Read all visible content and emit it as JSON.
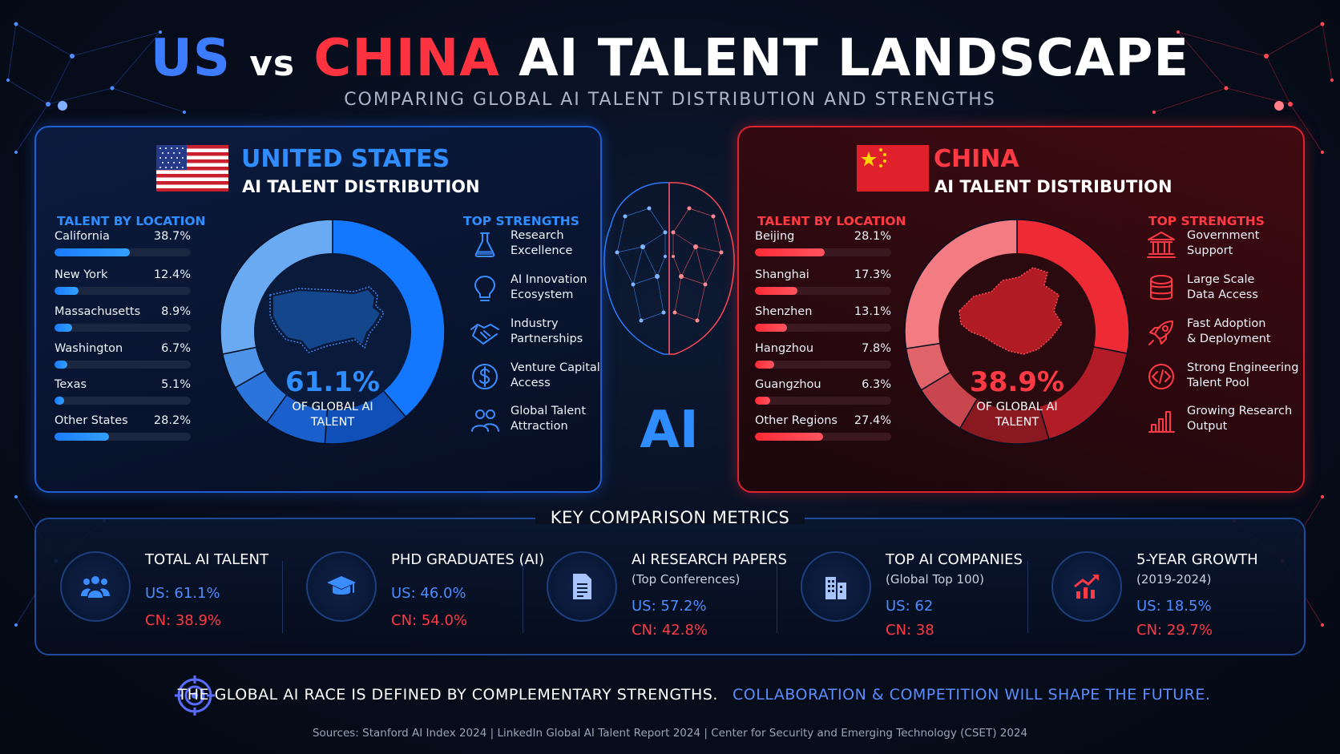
{
  "title": {
    "part1": "US",
    "part2": "vs",
    "part3": "CHINA",
    "part4": "AI TALENT LANDSCAPE"
  },
  "subtitle": "COMPARING GLOBAL AI TALENT DISTRIBUTION AND STRENGTHS",
  "colors": {
    "us": "#2f8dff",
    "china": "#ff3a44",
    "background": "#070d1c"
  },
  "us": {
    "name": "UNITED STATES",
    "subtitle": "AI TALENT DISTRIBUTION",
    "location_heading": "TALENT BY LOCATION",
    "strengths_heading": "TOP STRENGTHS",
    "donut_value": "61.1%",
    "donut_caption_1": "OF GLOBAL AI",
    "donut_caption_2": "TALENT",
    "strengths": [
      {
        "icon": "flask-icon",
        "line1": "Research",
        "line2": "Excellence"
      },
      {
        "icon": "lightbulb-icon",
        "line1": "AI Innovation",
        "line2": "Ecosystem"
      },
      {
        "icon": "handshake-icon",
        "line1": "Industry",
        "line2": "Partnerships"
      },
      {
        "icon": "dollar-icon",
        "line1": "Venture Capital",
        "line2": "Access"
      },
      {
        "icon": "people-icon",
        "line1": "Global Talent",
        "line2": "Attraction"
      }
    ]
  },
  "china": {
    "name": "CHINA",
    "subtitle": "AI TALENT DISTRIBUTION",
    "location_heading": "TALENT BY LOCATION",
    "strengths_heading": "TOP STRENGTHS",
    "donut_value": "38.9%",
    "donut_caption_1": "OF GLOBAL AI",
    "donut_caption_2": "TALENT",
    "strengths": [
      {
        "icon": "government-building-icon",
        "line1": "Government",
        "line2": "Support"
      },
      {
        "icon": "database-icon",
        "line1": "Large Scale",
        "line2": "Data Access"
      },
      {
        "icon": "rocket-icon",
        "line1": "Fast Adoption",
        "line2": "& Deployment"
      },
      {
        "icon": "code-icon",
        "line1": "Strong Engineering",
        "line2": "Talent Pool"
      },
      {
        "icon": "bar-chart-icon",
        "line1": "Growing Research",
        "line2": "Output"
      }
    ]
  },
  "center_label": "AI",
  "chart_data": [
    {
      "type": "bar",
      "title": "TALENT BY LOCATION",
      "group": "UNITED STATES",
      "categories": [
        "California",
        "New York",
        "Massachusetts",
        "Washington",
        "Texas",
        "Other States"
      ],
      "values": [
        38.7,
        12.4,
        8.9,
        6.7,
        5.1,
        28.2
      ],
      "labels": [
        "38.7%",
        "12.4%",
        "8.9%",
        "6.7%",
        "5.1%",
        "28.2%"
      ],
      "unit": "%",
      "orientation": "horizontal",
      "xlim": [
        0,
        70
      ]
    },
    {
      "type": "bar",
      "title": "TALENT BY LOCATION",
      "group": "CHINA",
      "categories": [
        "Beijing",
        "Shanghai",
        "Shenzhen",
        "Hangzhou",
        "Guangzhou",
        "Other Regions"
      ],
      "values": [
        28.1,
        17.3,
        13.1,
        7.8,
        6.3,
        27.4
      ],
      "labels": [
        "28.1%",
        "17.3%",
        "13.1%",
        "7.8%",
        "6.3%",
        "27.4%"
      ],
      "unit": "%",
      "orientation": "horizontal",
      "xlim": [
        0,
        55
      ]
    },
    {
      "type": "pie",
      "group": "UNITED STATES",
      "center_label": "61.1%",
      "categories": [
        "California",
        "New York",
        "Massachusetts",
        "Washington",
        "Texas",
        "Other States"
      ],
      "values": [
        38.7,
        12.4,
        8.9,
        6.7,
        5.1,
        28.2
      ],
      "colors": [
        "#1478ff",
        "#0e4fb8",
        "#1a5fcc",
        "#2a74dc",
        "#4d93ea",
        "#6aaaf2"
      ]
    },
    {
      "type": "pie",
      "group": "CHINA",
      "center_label": "38.9%",
      "categories": [
        "Beijing",
        "Shanghai",
        "Shenzhen",
        "Hangzhou",
        "Guangzhou",
        "Other Regions"
      ],
      "values": [
        28.1,
        17.3,
        13.1,
        7.8,
        6.3,
        27.4
      ],
      "colors": [
        "#ee2a34",
        "#b21c26",
        "#8a1820",
        "#c9464e",
        "#e0636a",
        "#f27c82"
      ]
    }
  ],
  "metrics": {
    "heading": "KEY COMPARISON METRICS",
    "items": [
      {
        "icon": "users-icon",
        "label": "TOTAL AI TALENT",
        "sub": "",
        "us": "US: 61.1%",
        "cn": "CN: 38.9%"
      },
      {
        "icon": "graduation-cap-icon",
        "label": "PHD GRADUATES (AI)",
        "sub": "",
        "us": "US: 46.0%",
        "cn": "CN: 54.0%"
      },
      {
        "icon": "document-icon",
        "label": "AI RESEARCH PAPERS",
        "sub": "(Top Conferences)",
        "us": "US: 57.2%",
        "cn": "CN: 42.8%"
      },
      {
        "icon": "buildings-icon",
        "label": "TOP AI COMPANIES",
        "sub": "(Global Top 100)",
        "us": "US: 62",
        "cn": "CN: 38"
      },
      {
        "icon": "growth-chart-icon",
        "label": "5-YEAR GROWTH",
        "sub": "(2019-2024)",
        "us": "US: 18.5%",
        "cn": "CN: 29.7%"
      }
    ]
  },
  "bottom": {
    "part1": "THE GLOBAL AI RACE IS DEFINED BY COMPLEMENTARY STRENGTHS.",
    "part2": "COLLABORATION & COMPETITION WILL SHAPE THE FUTURE."
  },
  "sources": "Sources: Stanford AI Index 2024  |  LinkedIn Global AI Talent Report 2024  |  Center for Security and Emerging Technology (CSET) 2024"
}
